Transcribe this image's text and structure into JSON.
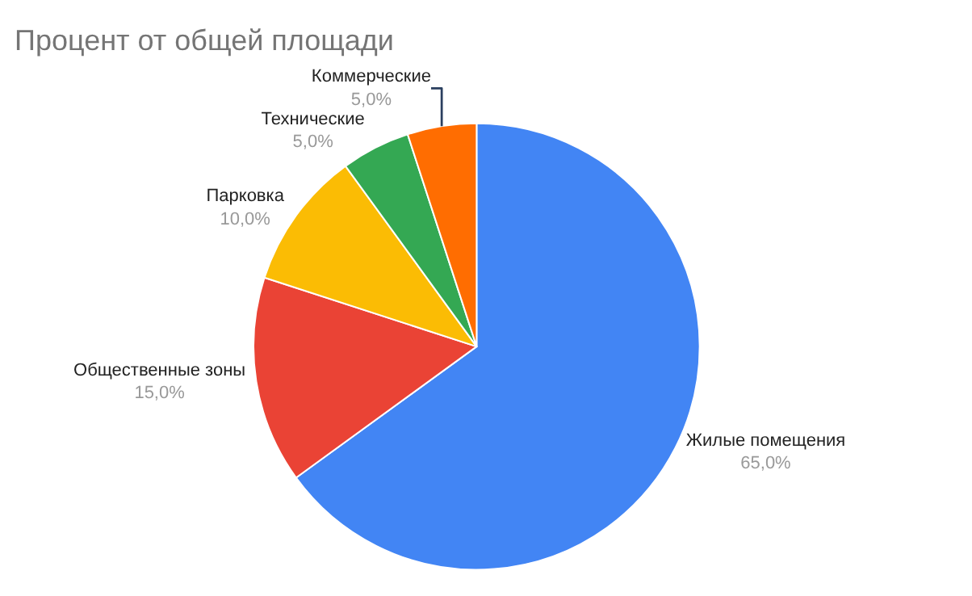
{
  "chart_data": {
    "type": "pie",
    "title": "Процент от общей площади",
    "categories": [
      "Жилые помещения",
      "Общественные зоны",
      "Парковка",
      "Технические",
      "Коммерческие"
    ],
    "values": [
      65,
      15,
      10,
      5,
      5
    ],
    "value_labels": [
      "65,0%",
      "15,0%",
      "10,0%",
      "5,0%",
      "5,0%"
    ],
    "colors": [
      "#4285f4",
      "#ea4335",
      "#fbbc04",
      "#34a853",
      "#ff6d01"
    ],
    "legend": false
  }
}
